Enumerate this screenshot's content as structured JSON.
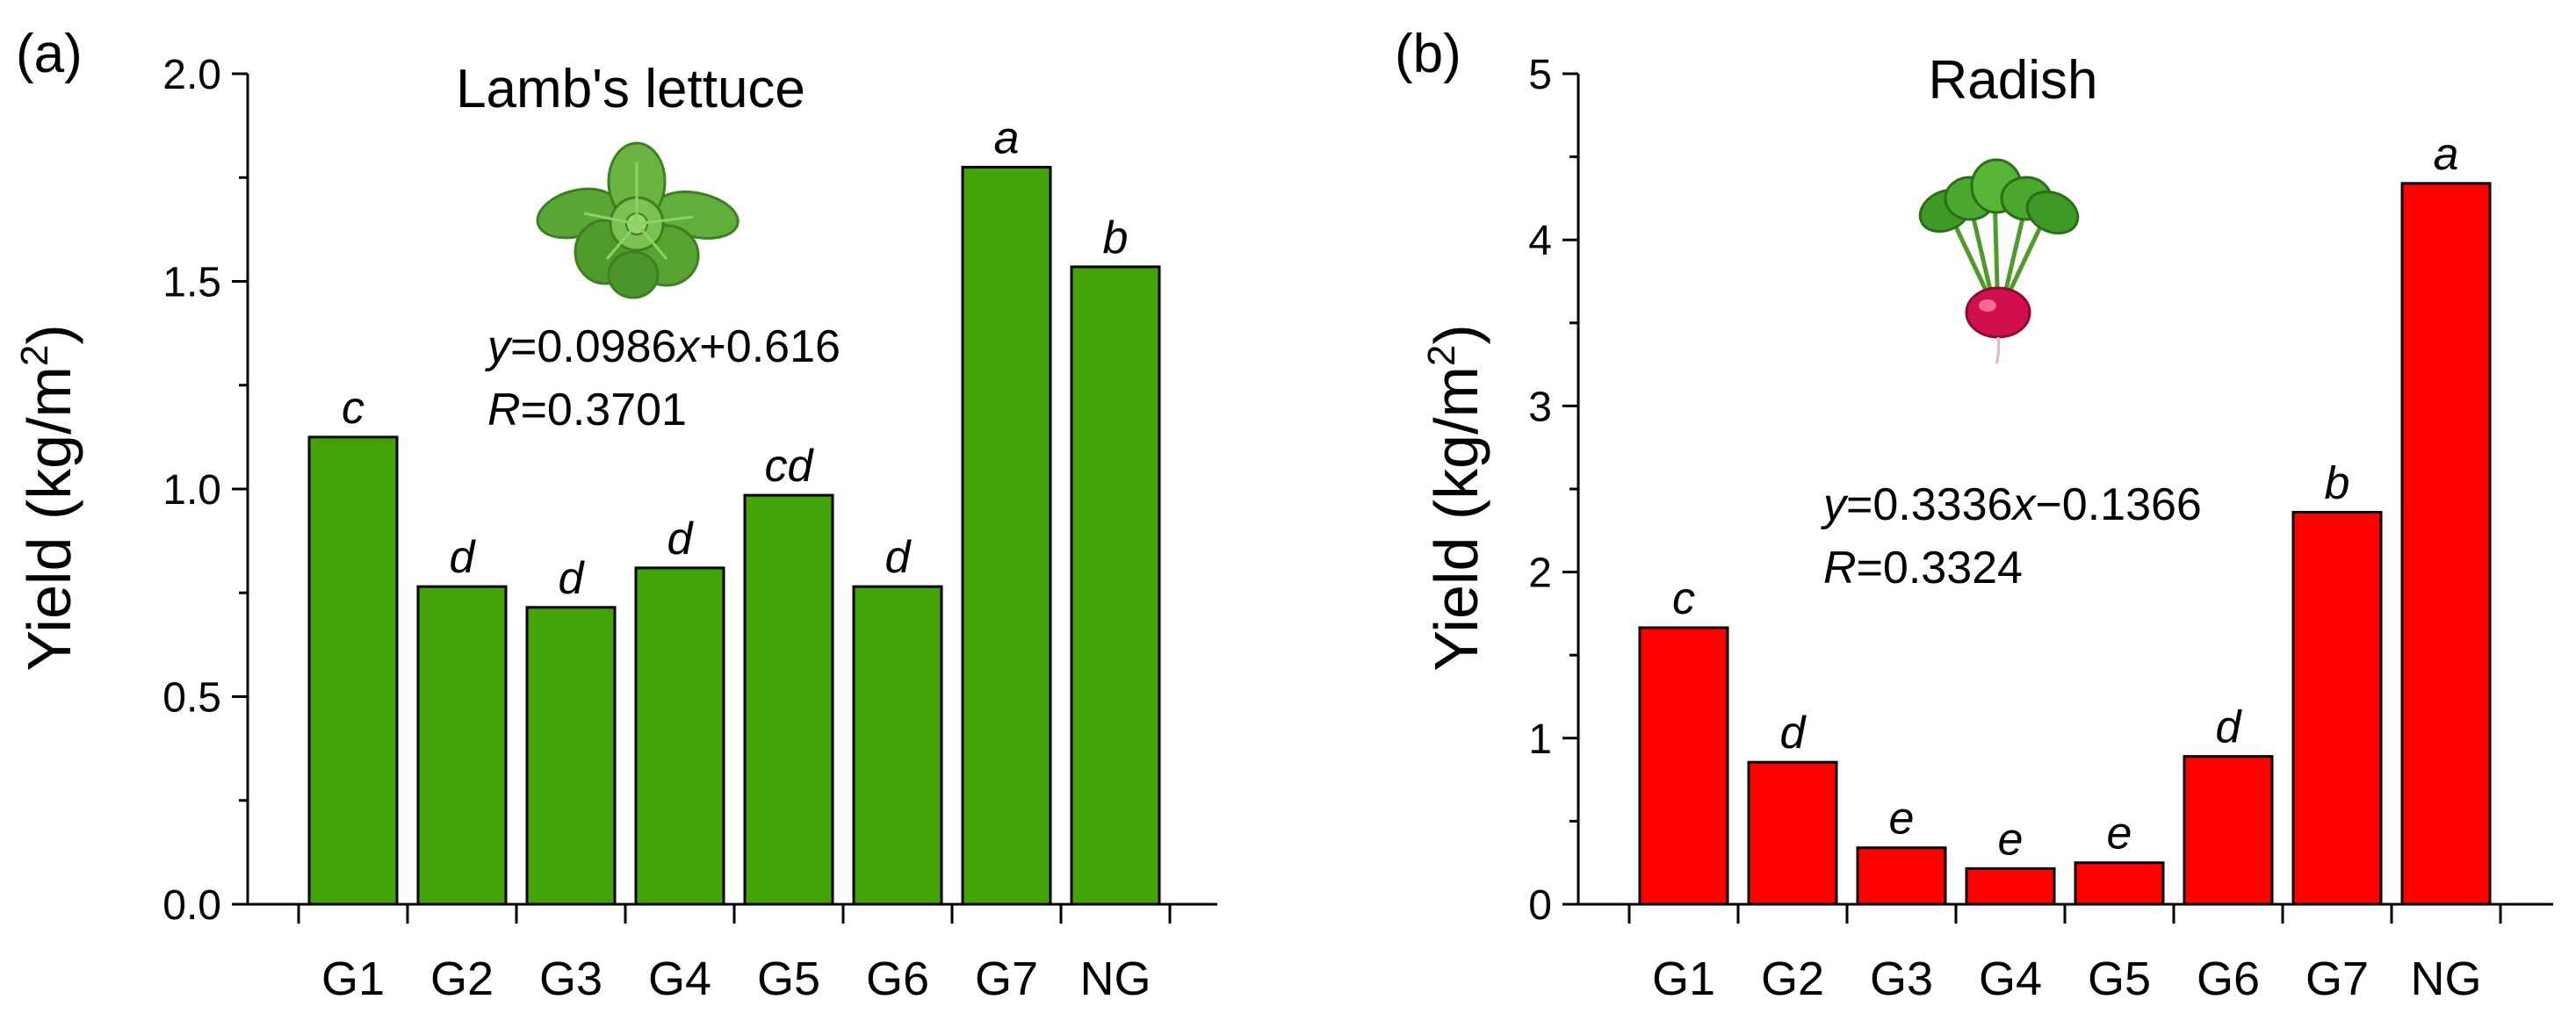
{
  "chart_data": [
    {
      "type": "bar",
      "panel_label": "(a)",
      "title": "Lamb's lettuce",
      "ylabel": "Yield (kg/m",
      "ylabel_sup": "2",
      "ylabel_end": ")",
      "xlabel": "",
      "categories": [
        "G1",
        "G2",
        "G3",
        "G4",
        "G5",
        "G6",
        "G7",
        "NG"
      ],
      "values": [
        1.125,
        0.765,
        0.715,
        0.81,
        0.985,
        0.765,
        1.775,
        1.535
      ],
      "letters": [
        "c",
        "d",
        "d",
        "d",
        "cd",
        "d",
        "a",
        "b"
      ],
      "ylim": [
        0,
        2.0
      ],
      "yticks": [
        0.0,
        0.5,
        1.0,
        1.5,
        2.0
      ],
      "ytick_labels": [
        "0.0",
        "0.5",
        "1.0",
        "1.5",
        "2.0"
      ],
      "bar_color": "#44a20a",
      "equation": {
        "y": "y",
        "rhs": "=0.0986",
        "x": "x",
        "tail": "+0.616"
      },
      "r_stat": {
        "r": "R",
        "value": "=0.3701"
      },
      "illustration": "lettuce-icon"
    },
    {
      "type": "bar",
      "panel_label": "(b)",
      "title": "Radish",
      "ylabel": "Yield (kg/m",
      "ylabel_sup": "2",
      "ylabel_end": ")",
      "xlabel": "",
      "categories": [
        "G1",
        "G2",
        "G3",
        "G4",
        "G5",
        "G6",
        "G7",
        "NG"
      ],
      "values": [
        1.665,
        0.855,
        0.34,
        0.215,
        0.25,
        0.89,
        2.36,
        4.34
      ],
      "letters": [
        "c",
        "d",
        "e",
        "e",
        "e",
        "d",
        "b",
        "a"
      ],
      "ylim": [
        0,
        5
      ],
      "yticks": [
        0,
        1,
        2,
        3,
        4,
        5
      ],
      "ytick_labels": [
        "0",
        "1",
        "2",
        "3",
        "4",
        "5"
      ],
      "bar_color": "#fe0000",
      "equation": {
        "y": "y",
        "rhs": "=0.3336",
        "x": "x",
        "tail": "−0.1366"
      },
      "r_stat": {
        "r": "R",
        "value": "=0.3324"
      },
      "illustration": "radish-icon"
    }
  ]
}
